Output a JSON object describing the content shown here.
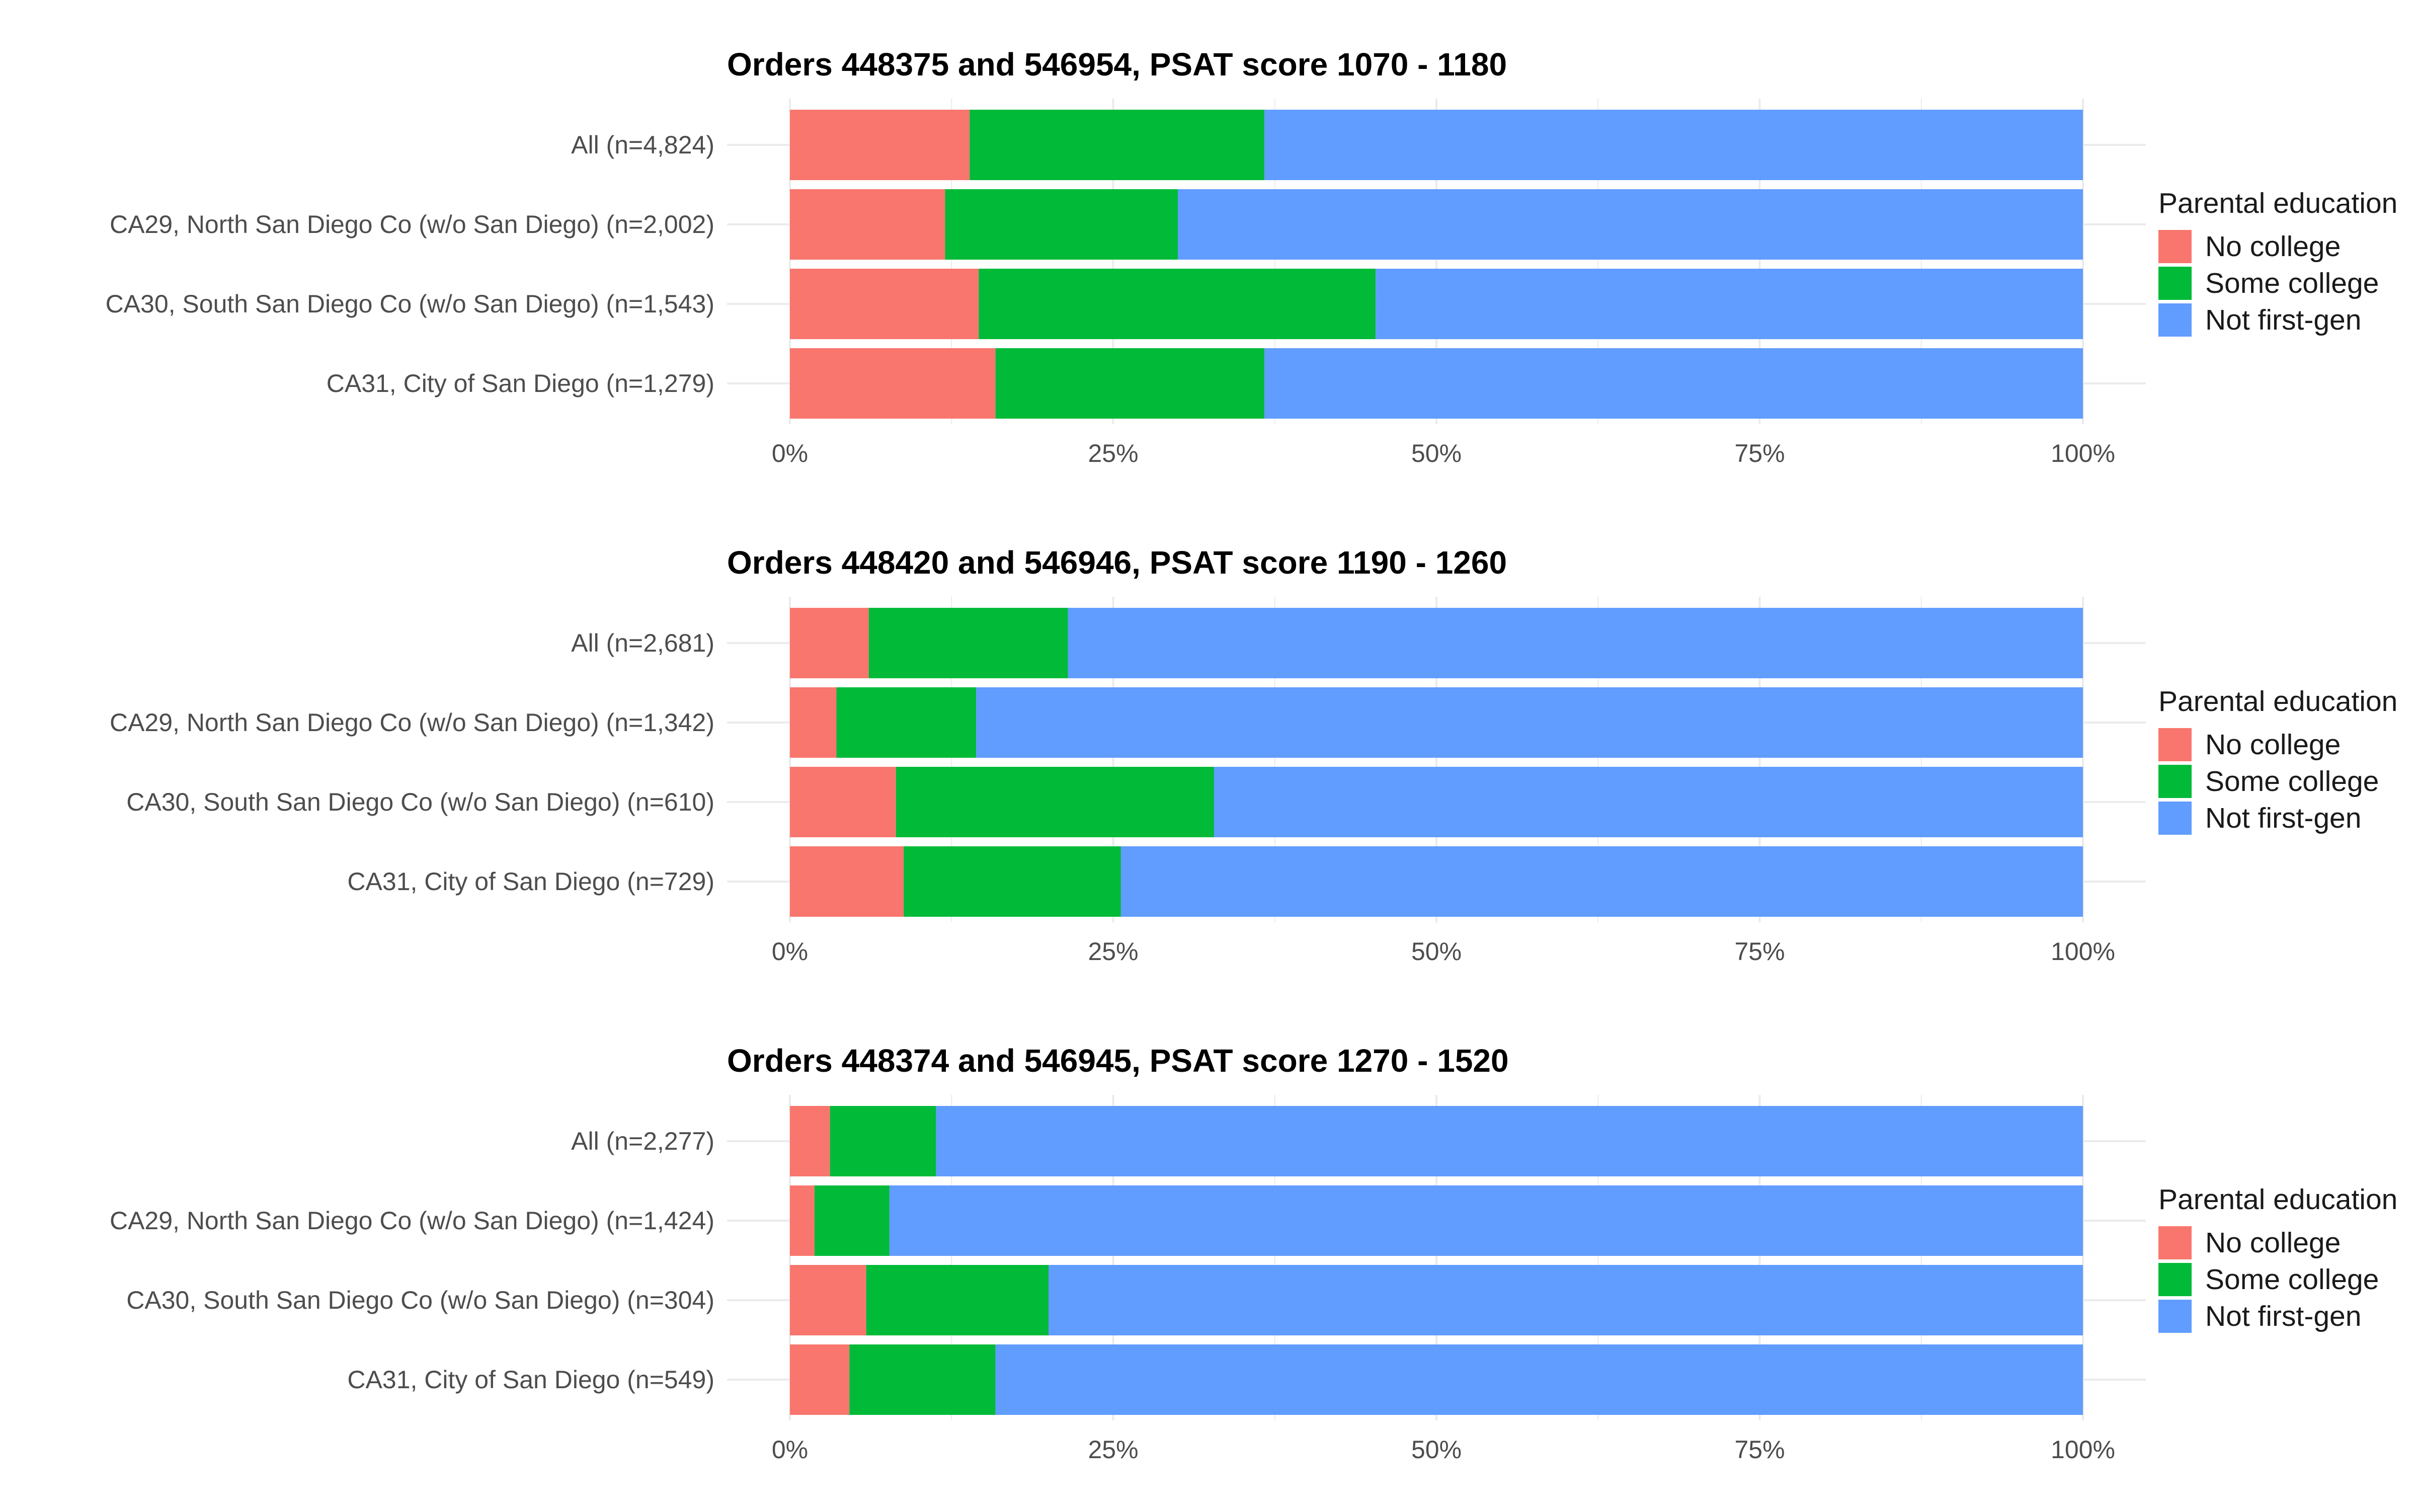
{
  "chart_data": [
    {
      "type": "bar",
      "orientation": "horizontal",
      "stacked": "percent",
      "title": "Orders 448375 and 546954, PSAT score 1070 - 1180",
      "categories": [
        "All (n=4,824)",
        "CA29, North San Diego Co (w/o San Diego) (n=2,002)",
        "CA30, South San Diego Co (w/o San Diego) (n=1,543)",
        "CA31, City of San Diego (n=1,279)"
      ],
      "series": [
        {
          "name": "No college",
          "color": "#F8766D",
          "values": [
            13.9,
            12.0,
            14.6,
            15.9
          ]
        },
        {
          "name": "Some college",
          "color": "#00BA38",
          "values": [
            22.8,
            18.0,
            30.7,
            20.8
          ]
        },
        {
          "name": "Not first-gen",
          "color": "#619CFF",
          "values": [
            63.3,
            70.0,
            54.7,
            63.3
          ]
        }
      ],
      "xlim": [
        0,
        100
      ],
      "xticks": [
        "0%",
        "25%",
        "50%",
        "75%",
        "100%"
      ],
      "legend_title": "Parental education",
      "legend_position": "right"
    },
    {
      "type": "bar",
      "orientation": "horizontal",
      "stacked": "percent",
      "title": "Orders 448420 and 546946, PSAT score 1190 - 1260",
      "categories": [
        "All (n=2,681)",
        "CA29, North San Diego Co (w/o San Diego) (n=1,342)",
        "CA30, South San Diego Co (w/o San Diego) (n=610)",
        "CA31, City of San Diego (n=729)"
      ],
      "series": [
        {
          "name": "No college",
          "color": "#F8766D",
          "values": [
            6.1,
            3.6,
            8.2,
            8.8
          ]
        },
        {
          "name": "Some college",
          "color": "#00BA38",
          "values": [
            15.4,
            10.8,
            24.6,
            16.8
          ]
        },
        {
          "name": "Not first-gen",
          "color": "#619CFF",
          "values": [
            78.5,
            85.6,
            67.2,
            74.4
          ]
        }
      ],
      "xlim": [
        0,
        100
      ],
      "xticks": [
        "0%",
        "25%",
        "50%",
        "75%",
        "100%"
      ],
      "legend_title": "Parental education",
      "legend_position": "right"
    },
    {
      "type": "bar",
      "orientation": "horizontal",
      "stacked": "percent",
      "title": "Orders 448374 and 546945, PSAT score 1270 - 1520",
      "categories": [
        "All (n=2,277)",
        "CA29, North San Diego Co (w/o San Diego) (n=1,424)",
        "CA30, South San Diego Co (w/o San Diego) (n=304)",
        "CA31, City of San Diego (n=549)"
      ],
      "series": [
        {
          "name": "No college",
          "color": "#F8766D",
          "values": [
            3.1,
            1.9,
            5.9,
            4.6
          ]
        },
        {
          "name": "Some college",
          "color": "#00BA38",
          "values": [
            8.2,
            5.8,
            14.1,
            11.3
          ]
        },
        {
          "name": "Not first-gen",
          "color": "#619CFF",
          "values": [
            88.7,
            92.3,
            80.0,
            84.1
          ]
        }
      ],
      "xlim": [
        0,
        100
      ],
      "xticks": [
        "0%",
        "25%",
        "50%",
        "75%",
        "100%"
      ],
      "legend_title": "Parental education",
      "legend_position": "right"
    }
  ]
}
